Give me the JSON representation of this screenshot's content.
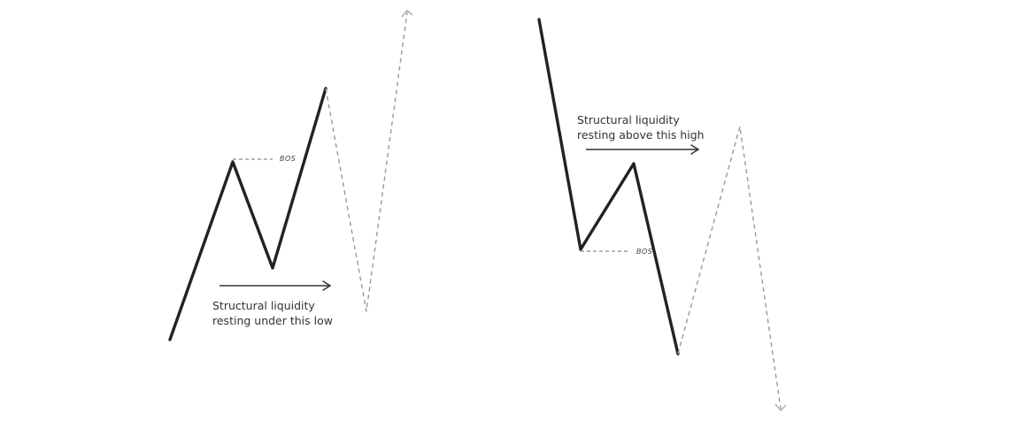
{
  "left_panel": {
    "bos_label": "BOS",
    "note_line1": "Structural liquidity",
    "note_line2": "resting under this low"
  },
  "right_panel": {
    "bos_label": "BOS",
    "note_line1": "Structural liquidity",
    "note_line2": "resting above this high"
  },
  "colors": {
    "solid_line": "#222222",
    "dashed_line": "#9a9a9a",
    "text": "#333333",
    "background": "#ffffff"
  }
}
